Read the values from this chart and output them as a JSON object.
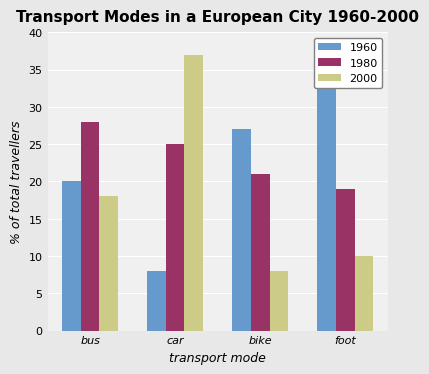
{
  "title": "Transport Modes in a European City 1960-2000",
  "categories": [
    "bus",
    "car",
    "bike",
    "foot"
  ],
  "series": {
    "1960": [
      20,
      8,
      27,
      35
    ],
    "1980": [
      28,
      25,
      21,
      19
    ],
    "2000": [
      18,
      37,
      8,
      10
    ]
  },
  "colors": {
    "1960": "#6699cc",
    "1980": "#993366",
    "2000": "#cccc88"
  },
  "ylabel": "% of total travellers",
  "xlabel": "transport mode",
  "ylim": [
    0,
    40
  ],
  "yticks": [
    0,
    5,
    10,
    15,
    20,
    25,
    30,
    35,
    40
  ],
  "legend_labels": [
    "1960",
    "1980",
    "2000"
  ],
  "title_fontsize": 11,
  "axis_fontsize": 9,
  "tick_fontsize": 8,
  "legend_fontsize": 8,
  "bar_width": 0.22,
  "background_color": "#f0f0f0"
}
